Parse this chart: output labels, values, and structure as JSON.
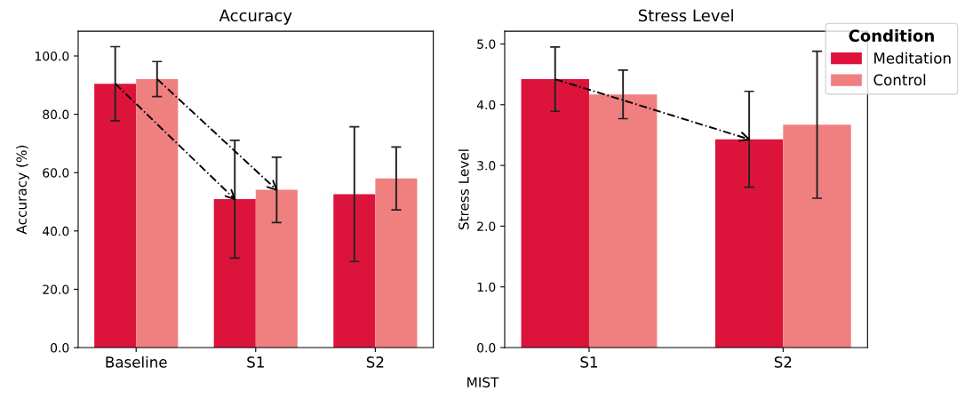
{
  "chart_data": [
    {
      "type": "bar",
      "title": "Accuracy",
      "ylabel": "Accuracy (%)",
      "legend_title": "Condition",
      "categories": [
        "Baseline",
        "S1",
        "S2"
      ],
      "series": [
        {
          "name": "Meditation",
          "color": "#dc143c",
          "values": [
            90.5,
            50.9,
            52.6
          ],
          "errors": [
            12.7,
            20.2,
            23.1
          ]
        },
        {
          "name": "Control",
          "color": "#f08080",
          "values": [
            92.1,
            54.1,
            58.0
          ],
          "errors": [
            6.0,
            11.2,
            10.8
          ]
        }
      ],
      "ylim": [
        0,
        108.5
      ],
      "yticks": [
        {
          "value": 0,
          "label": "0.0"
        },
        {
          "value": 20,
          "label": "20.0"
        },
        {
          "value": 40,
          "label": "40.0"
        },
        {
          "value": 60,
          "label": "60.0"
        },
        {
          "value": 80,
          "label": "80.0"
        },
        {
          "value": 100,
          "label": "100.0"
        }
      ],
      "grid": false,
      "legend": "top right"
    },
    {
      "type": "bar",
      "title": "Stress Level",
      "ylabel": "Stress Level",
      "xlabel": "MIST",
      "categories": [
        "S1",
        "S2"
      ],
      "series": [
        {
          "color": "#dc143c",
          "values": [
            4.42,
            3.43
          ],
          "errors": [
            0.53,
            0.79
          ]
        },
        {
          "color": "#f08080",
          "values": [
            4.17,
            3.67
          ],
          "errors": [
            0.4,
            1.21
          ]
        }
      ],
      "ylim": [
        0,
        5.21
      ],
      "yticks": [
        {
          "value": 0,
          "label": "0.0"
        },
        {
          "value": 1,
          "label": "1.0"
        },
        {
          "value": 2,
          "label": "2.0"
        },
        {
          "value": 3,
          "label": "3.0"
        },
        {
          "value": 4,
          "label": "4.0"
        },
        {
          "value": 5,
          "label": "5.0"
        }
      ],
      "grid": false
    }
  ]
}
